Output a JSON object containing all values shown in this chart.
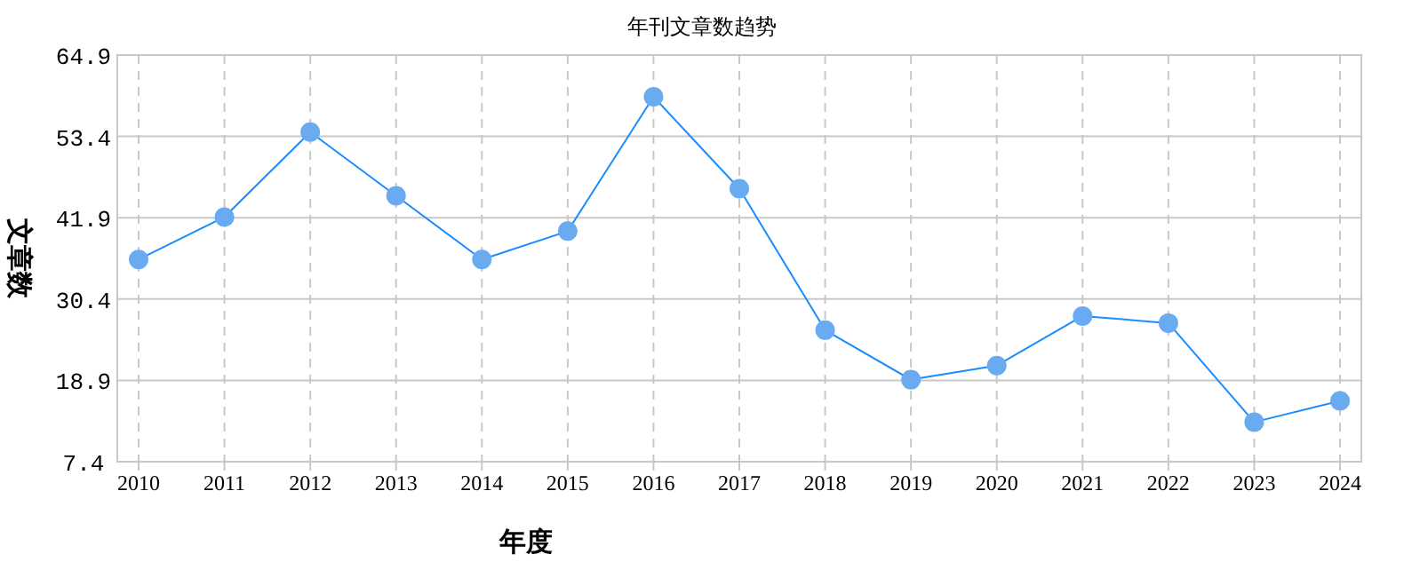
{
  "chart_data": {
    "type": "line",
    "title": "年刊文章数趋势",
    "xlabel": "年度",
    "ylabel": "文章数",
    "categories": [
      "2010",
      "2011",
      "2012",
      "2013",
      "2014",
      "2015",
      "2016",
      "2017",
      "2018",
      "2019",
      "2020",
      "2021",
      "2022",
      "2023",
      "2024"
    ],
    "series": [
      {
        "color": "#1a8cff",
        "values": [
          36,
          42,
          54,
          45,
          36,
          40,
          59,
          46,
          26,
          19,
          21,
          28,
          27,
          13,
          16
        ]
      }
    ],
    "ylim": [
      7.4,
      64.9
    ],
    "yticks": [
      7.4,
      18.9,
      30.4,
      41.9,
      53.4,
      64.9
    ],
    "grid": true,
    "marker": "circle",
    "line_style": "solid"
  }
}
